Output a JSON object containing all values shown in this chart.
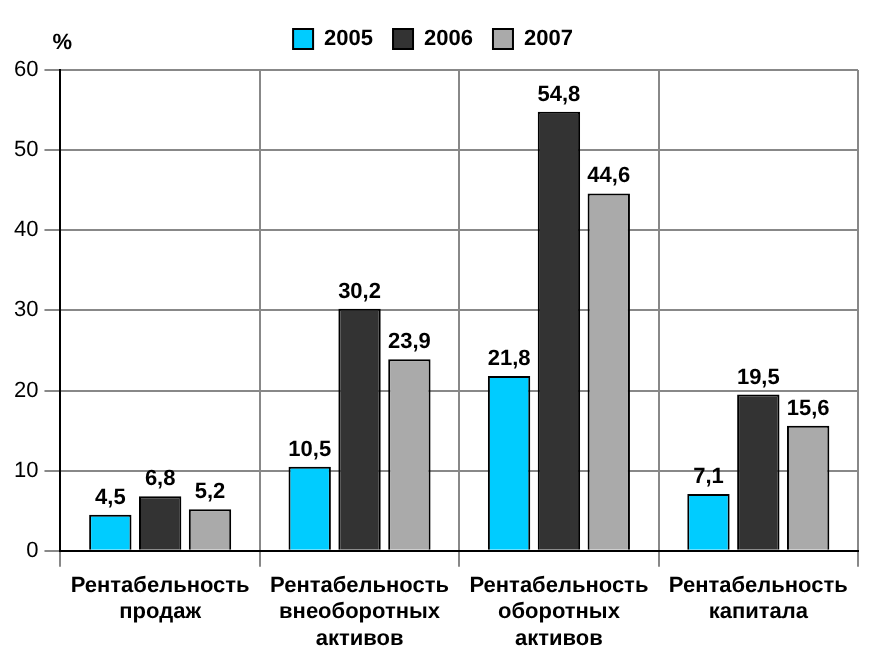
{
  "chart_data": {
    "type": "bar",
    "ylabel": "%",
    "categories": [
      "Рентабельность продаж",
      "Рентабельность внеоборотных активов",
      "Рентабельность оборотных активов",
      "Рентабельность капитала"
    ],
    "series": [
      {
        "name": "2005",
        "color": "#00ccff",
        "values": [
          4.5,
          10.5,
          21.8,
          7.1
        ]
      },
      {
        "name": "2006",
        "color": "#333333",
        "values": [
          6.8,
          30.2,
          54.8,
          19.5
        ]
      },
      {
        "name": "2007",
        "color": "#aaaaaa",
        "values": [
          5.2,
          23.9,
          44.6,
          15.6
        ]
      }
    ],
    "value_labels": [
      [
        "4,5",
        "10,5",
        "21,8",
        "7,1"
      ],
      [
        "6,8",
        "30,2",
        "54,8",
        "19,5"
      ],
      [
        "5,2",
        "23,9",
        "44,6",
        "15,6"
      ]
    ],
    "ylim": [
      0,
      60
    ],
    "yticks": [
      0,
      10,
      20,
      30,
      40,
      50,
      60
    ],
    "grid": true,
    "legend": "top"
  }
}
